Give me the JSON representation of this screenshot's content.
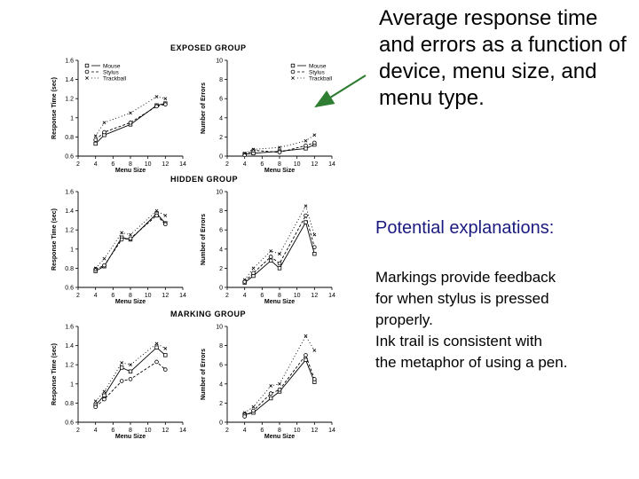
{
  "slide": {
    "title": "Average response time and errors as a function of device, menu size, and menu type.",
    "explanations_heading": "Potential explanations:",
    "explanations_lines": [
      "Markings provide feedback",
      "for when stylus is pressed",
      "properly.",
      "Ink trail is consistent with",
      "the metaphor of using a pen."
    ]
  },
  "groups": [
    {
      "title": "EXPOSED GROUP"
    },
    {
      "title": "HIDDEN GROUP"
    },
    {
      "title": "MARKING GROUP"
    }
  ],
  "colors": {
    "arrow": "#2e7d32",
    "ink": "#000000",
    "heading": "#1a1a80"
  },
  "chart_data": [
    {
      "type": "line",
      "group": "EXPOSED GROUP",
      "xlabel": "Menu Size",
      "ylabel": "Response Time (sec)",
      "xlim": [
        2,
        14
      ],
      "ylim": [
        0.6,
        1.6
      ],
      "xticks": [
        2,
        4,
        6,
        8,
        10,
        12,
        14
      ],
      "yticks": [
        0.6,
        0.8,
        1.0,
        1.2,
        1.4,
        1.6
      ],
      "x": [
        4,
        5,
        8,
        11,
        12
      ],
      "legend_position": "top-left",
      "series": [
        {
          "name": "Mouse",
          "values": [
            0.73,
            0.82,
            0.93,
            1.13,
            1.15
          ]
        },
        {
          "name": "Stylus",
          "values": [
            0.77,
            0.85,
            0.95,
            1.12,
            1.14
          ]
        },
        {
          "name": "Trackball",
          "values": [
            0.81,
            0.95,
            1.05,
            1.22,
            1.2
          ]
        }
      ]
    },
    {
      "type": "line",
      "group": "EXPOSED GROUP",
      "xlabel": "Menu Size",
      "ylabel": "Number of Errors",
      "xlim": [
        2,
        14
      ],
      "ylim": [
        0,
        10
      ],
      "xticks": [
        2,
        4,
        6,
        8,
        10,
        12,
        14
      ],
      "yticks": [
        0,
        2,
        4,
        6,
        8,
        10
      ],
      "x": [
        4,
        5,
        8,
        11,
        12
      ],
      "legend_position": "top-right",
      "series": [
        {
          "name": "Mouse",
          "values": [
            0.2,
            0.3,
            0.5,
            0.8,
            1.2
          ]
        },
        {
          "name": "Stylus",
          "values": [
            0.1,
            0.6,
            0.4,
            1.1,
            1.4
          ]
        },
        {
          "name": "Trackball",
          "values": [
            0.3,
            0.7,
            0.9,
            1.6,
            2.2
          ]
        }
      ]
    },
    {
      "type": "line",
      "group": "HIDDEN GROUP",
      "xlabel": "Menu Size",
      "ylabel": "Response Time (sec)",
      "xlim": [
        2,
        14
      ],
      "ylim": [
        0.6,
        1.6
      ],
      "xticks": [
        2,
        4,
        6,
        8,
        10,
        12,
        14
      ],
      "yticks": [
        0.6,
        0.8,
        1.0,
        1.2,
        1.4,
        1.6
      ],
      "x": [
        4,
        5,
        7,
        8,
        11,
        12
      ],
      "series": [
        {
          "name": "Mouse",
          "values": [
            0.77,
            0.82,
            1.12,
            1.1,
            1.37,
            1.27
          ]
        },
        {
          "name": "Stylus",
          "values": [
            0.79,
            0.83,
            1.1,
            1.11,
            1.35,
            1.26
          ]
        },
        {
          "name": "Trackball",
          "values": [
            0.8,
            0.9,
            1.17,
            1.15,
            1.4,
            1.35
          ]
        }
      ]
    },
    {
      "type": "line",
      "group": "HIDDEN GROUP",
      "xlabel": "Menu Size",
      "ylabel": "Number of Errors",
      "xlim": [
        2,
        14
      ],
      "ylim": [
        0,
        10
      ],
      "xticks": [
        2,
        4,
        6,
        8,
        10,
        12,
        14
      ],
      "yticks": [
        0,
        2,
        4,
        6,
        8,
        10
      ],
      "x": [
        4,
        5,
        7,
        8,
        11,
        12
      ],
      "series": [
        {
          "name": "Mouse",
          "values": [
            0.5,
            1.2,
            2.8,
            2.0,
            6.8,
            3.5
          ]
        },
        {
          "name": "Stylus",
          "values": [
            0.6,
            1.5,
            3.2,
            2.5,
            7.5,
            4.2
          ]
        },
        {
          "name": "Trackball",
          "values": [
            0.8,
            2.0,
            3.8,
            3.5,
            8.5,
            5.5
          ]
        }
      ]
    },
    {
      "type": "line",
      "group": "MARKING GROUP",
      "xlabel": "Menu Size",
      "ylabel": "Response Time (sec)",
      "xlim": [
        2,
        14
      ],
      "ylim": [
        0.6,
        1.6
      ],
      "xticks": [
        2,
        4,
        6,
        8,
        10,
        12,
        14
      ],
      "yticks": [
        0.6,
        0.8,
        1.0,
        1.2,
        1.4,
        1.6
      ],
      "x": [
        4,
        5,
        7,
        8,
        11,
        12
      ],
      "series": [
        {
          "name": "Mouse",
          "values": [
            0.78,
            0.88,
            1.17,
            1.13,
            1.38,
            1.3
          ]
        },
        {
          "name": "Stylus",
          "values": [
            0.76,
            0.84,
            1.03,
            1.05,
            1.23,
            1.15
          ]
        },
        {
          "name": "Trackball",
          "values": [
            0.82,
            0.92,
            1.22,
            1.2,
            1.42,
            1.37
          ]
        }
      ]
    },
    {
      "type": "line",
      "group": "MARKING GROUP",
      "xlabel": "Menu Size",
      "ylabel": "Number of Errors",
      "xlim": [
        2,
        14
      ],
      "ylim": [
        0,
        10
      ],
      "xticks": [
        2,
        4,
        6,
        8,
        10,
        12,
        14
      ],
      "yticks": [
        0,
        2,
        4,
        6,
        8,
        10
      ],
      "x": [
        4,
        5,
        7,
        8,
        11,
        12
      ],
      "series": [
        {
          "name": "Mouse",
          "values": [
            0.8,
            1.0,
            2.5,
            3.2,
            6.5,
            4.2
          ]
        },
        {
          "name": "Stylus",
          "values": [
            0.6,
            1.2,
            3.0,
            3.4,
            7.0,
            4.5
          ]
        },
        {
          "name": "Trackball",
          "values": [
            1.0,
            1.6,
            3.8,
            4.0,
            9.0,
            7.5
          ]
        }
      ]
    }
  ]
}
